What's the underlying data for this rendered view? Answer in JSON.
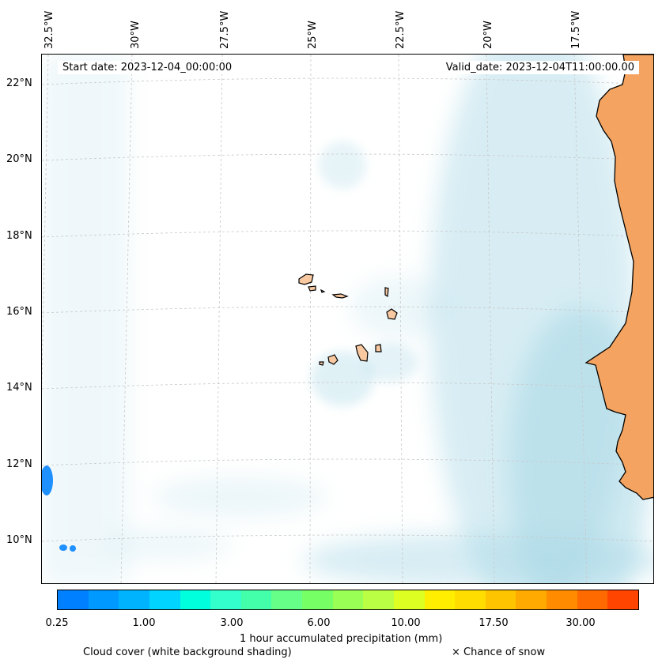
{
  "map": {
    "start_date": "Start date: 2023-12-04_00:00:00",
    "valid_date": "Valid_date: 2023-12-04T11:00:00.00",
    "lon_labels": [
      "32.5°W",
      "30°W",
      "27.5°W",
      "25°W",
      "22.5°W",
      "20°W",
      "17.5°W"
    ],
    "lat_labels": [
      "22°N",
      "20°N",
      "18°N",
      "16°N",
      "14°N",
      "12°N",
      "10°N"
    ],
    "land_color": "#f4a460",
    "island_color": "#f8c8a0",
    "cloud_color": "#a8d8e6",
    "precip_color": "#1e90ff"
  },
  "legend": {
    "colorbar_colors": [
      "#0080ff",
      "#0099ff",
      "#00b3ff",
      "#00d4ff",
      "#00ffdd",
      "#33ffcc",
      "#44ffaa",
      "#66ff88",
      "#77ff66",
      "#99ff55",
      "#bbff44",
      "#ddff22",
      "#ffee00",
      "#ffdd00",
      "#ffc400",
      "#ffaa00",
      "#ff8c00",
      "#ff6a00",
      "#ff4500"
    ],
    "ticks": [
      "0.25",
      "1.00",
      "3.00",
      "6.00",
      "10.00",
      "17.50",
      "30.00"
    ],
    "precip_label": "1 hour accumulated precipitation (mm)",
    "cloud_label": "Cloud cover (white background shading)",
    "snow_label": "× Chance of snow"
  }
}
